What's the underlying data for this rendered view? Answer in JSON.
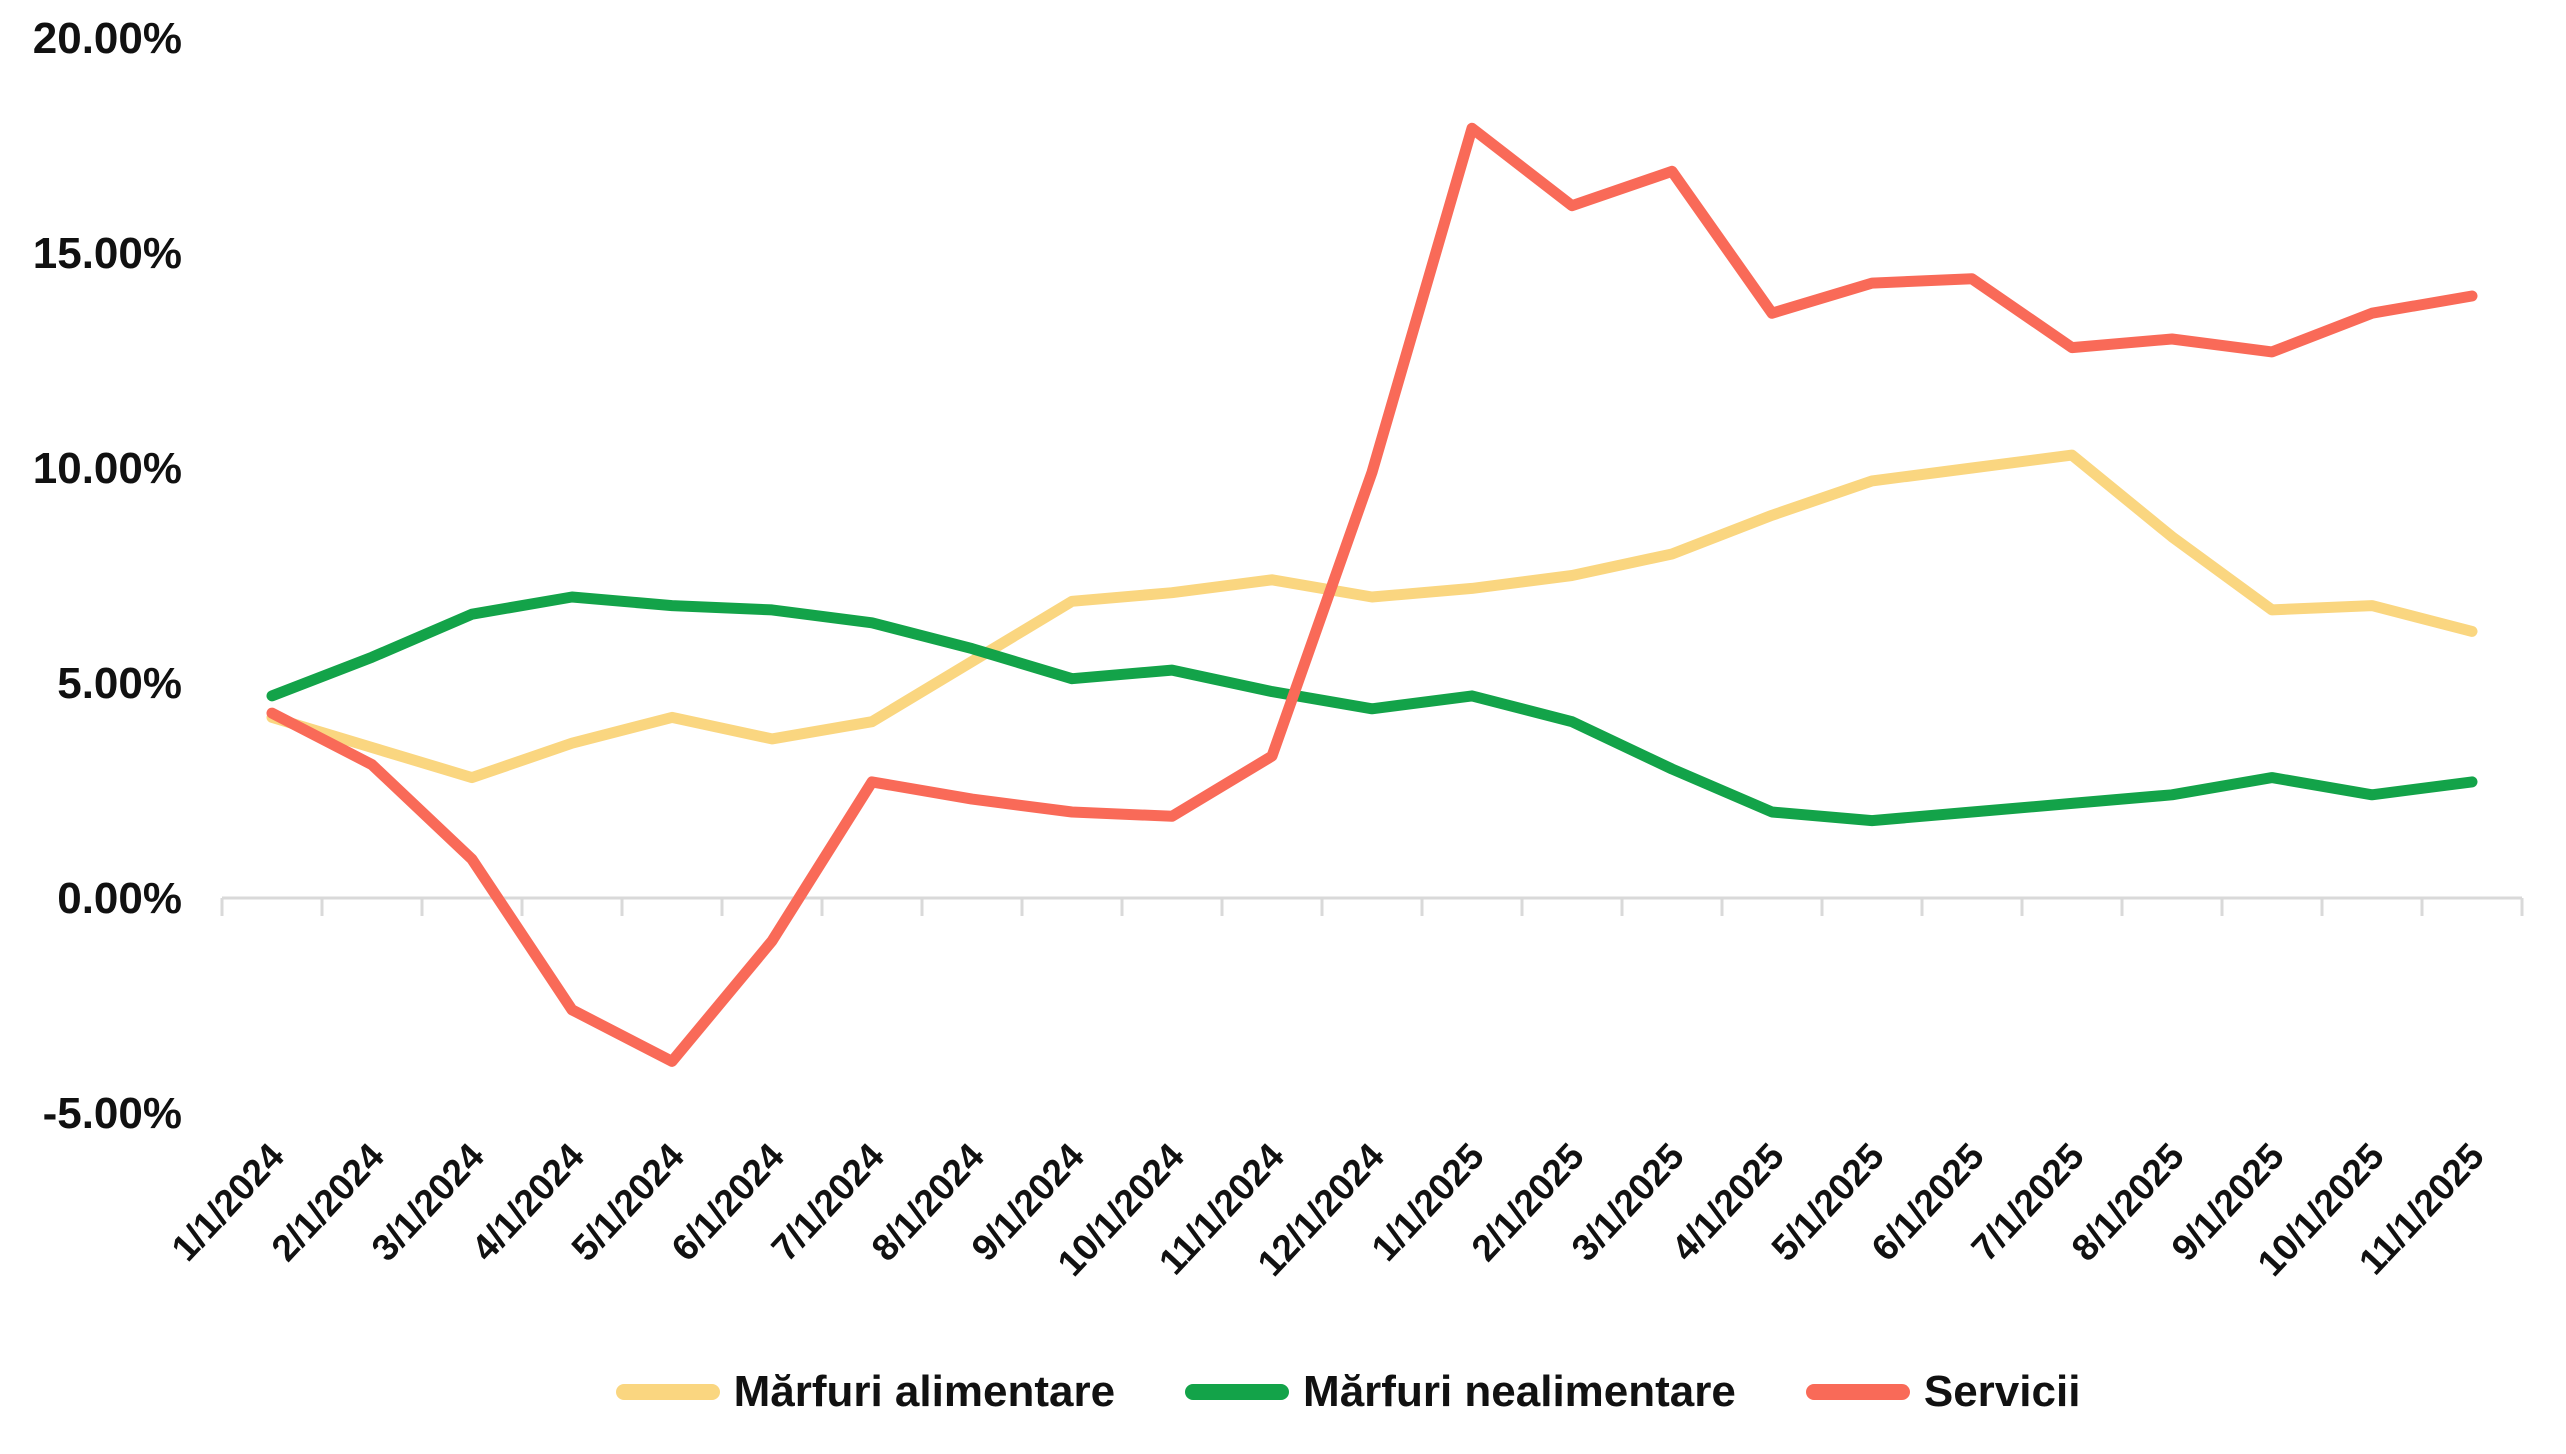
{
  "chart_data": {
    "type": "line",
    "title": "",
    "xlabel": "",
    "ylabel": "",
    "x": [
      "1/1/2024",
      "2/1/2024",
      "3/1/2024",
      "4/1/2024",
      "5/1/2024",
      "6/1/2024",
      "7/1/2024",
      "8/1/2024",
      "9/1/2024",
      "10/1/2024",
      "11/1/2024",
      "12/1/2024",
      "1/1/2025",
      "2/1/2025",
      "3/1/2025",
      "4/1/2025",
      "5/1/2025",
      "6/1/2025",
      "7/1/2025",
      "8/1/2025",
      "9/1/2025",
      "10/1/2025",
      "11/1/2025"
    ],
    "series": [
      {
        "name": "Mărfuri alimentare",
        "color": "#FAD680",
        "values": [
          4.2,
          3.5,
          2.8,
          3.6,
          4.2,
          3.7,
          4.1,
          5.5,
          6.9,
          7.1,
          7.4,
          7.0,
          7.2,
          7.5,
          8.0,
          8.9,
          9.7,
          10.0,
          10.3,
          8.4,
          6.7,
          6.8,
          6.2
        ]
      },
      {
        "name": "Mărfuri nealimentare",
        "color": "#13A349",
        "values": [
          4.7,
          5.6,
          6.6,
          7.0,
          6.8,
          6.7,
          6.4,
          5.8,
          5.1,
          5.3,
          4.8,
          4.4,
          4.7,
          4.1,
          3.0,
          2.0,
          1.8,
          2.0,
          2.2,
          2.4,
          2.8,
          2.4,
          2.7
        ]
      },
      {
        "name": "Servicii",
        "color": "#F96A58",
        "values": [
          4.3,
          3.1,
          0.9,
          -2.6,
          -3.8,
          -1.0,
          2.7,
          2.3,
          2.0,
          1.9,
          3.3,
          9.9,
          17.9,
          16.1,
          16.9,
          13.6,
          14.3,
          14.4,
          12.8,
          13.0,
          12.7,
          13.6,
          14.0
        ]
      }
    ],
    "y_axis": {
      "min": -5,
      "max": 20,
      "tick_values": [
        20,
        15,
        10,
        5,
        0,
        -5
      ],
      "tick_labels": [
        "20.00%",
        "15.00%",
        "10.00%",
        "5.00%",
        "0.00%",
        "-5.00%"
      ]
    },
    "grid": "zero-axis-only",
    "legend_position": "bottom"
  },
  "colors": {
    "background": "#FFFFFF",
    "axis_line": "#D9D9D9",
    "text": "#111111"
  }
}
